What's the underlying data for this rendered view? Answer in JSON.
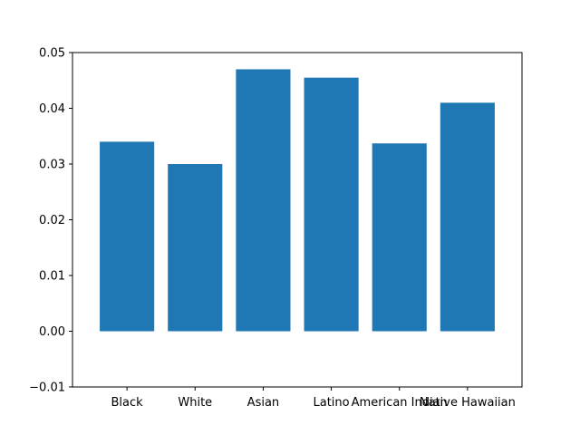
{
  "chart_data": {
    "type": "bar",
    "title": "",
    "xlabel": "",
    "ylabel": "",
    "categories": [
      "Black",
      "White",
      "Asian",
      "Latino",
      "American Indian",
      "Native Hawaiian"
    ],
    "values": [
      0.034,
      0.03,
      0.047,
      0.0455,
      0.0337,
      0.041
    ],
    "ylim": [
      -0.01,
      0.05
    ],
    "yticks": [
      -0.01,
      0.0,
      0.01,
      0.02,
      0.03,
      0.04,
      0.05
    ],
    "ytick_labels": [
      "−0.01",
      "0.00",
      "0.01",
      "0.02",
      "0.03",
      "0.04",
      "0.05"
    ],
    "bar_color": "#1f77b4",
    "grid": false,
    "legend": "none"
  }
}
